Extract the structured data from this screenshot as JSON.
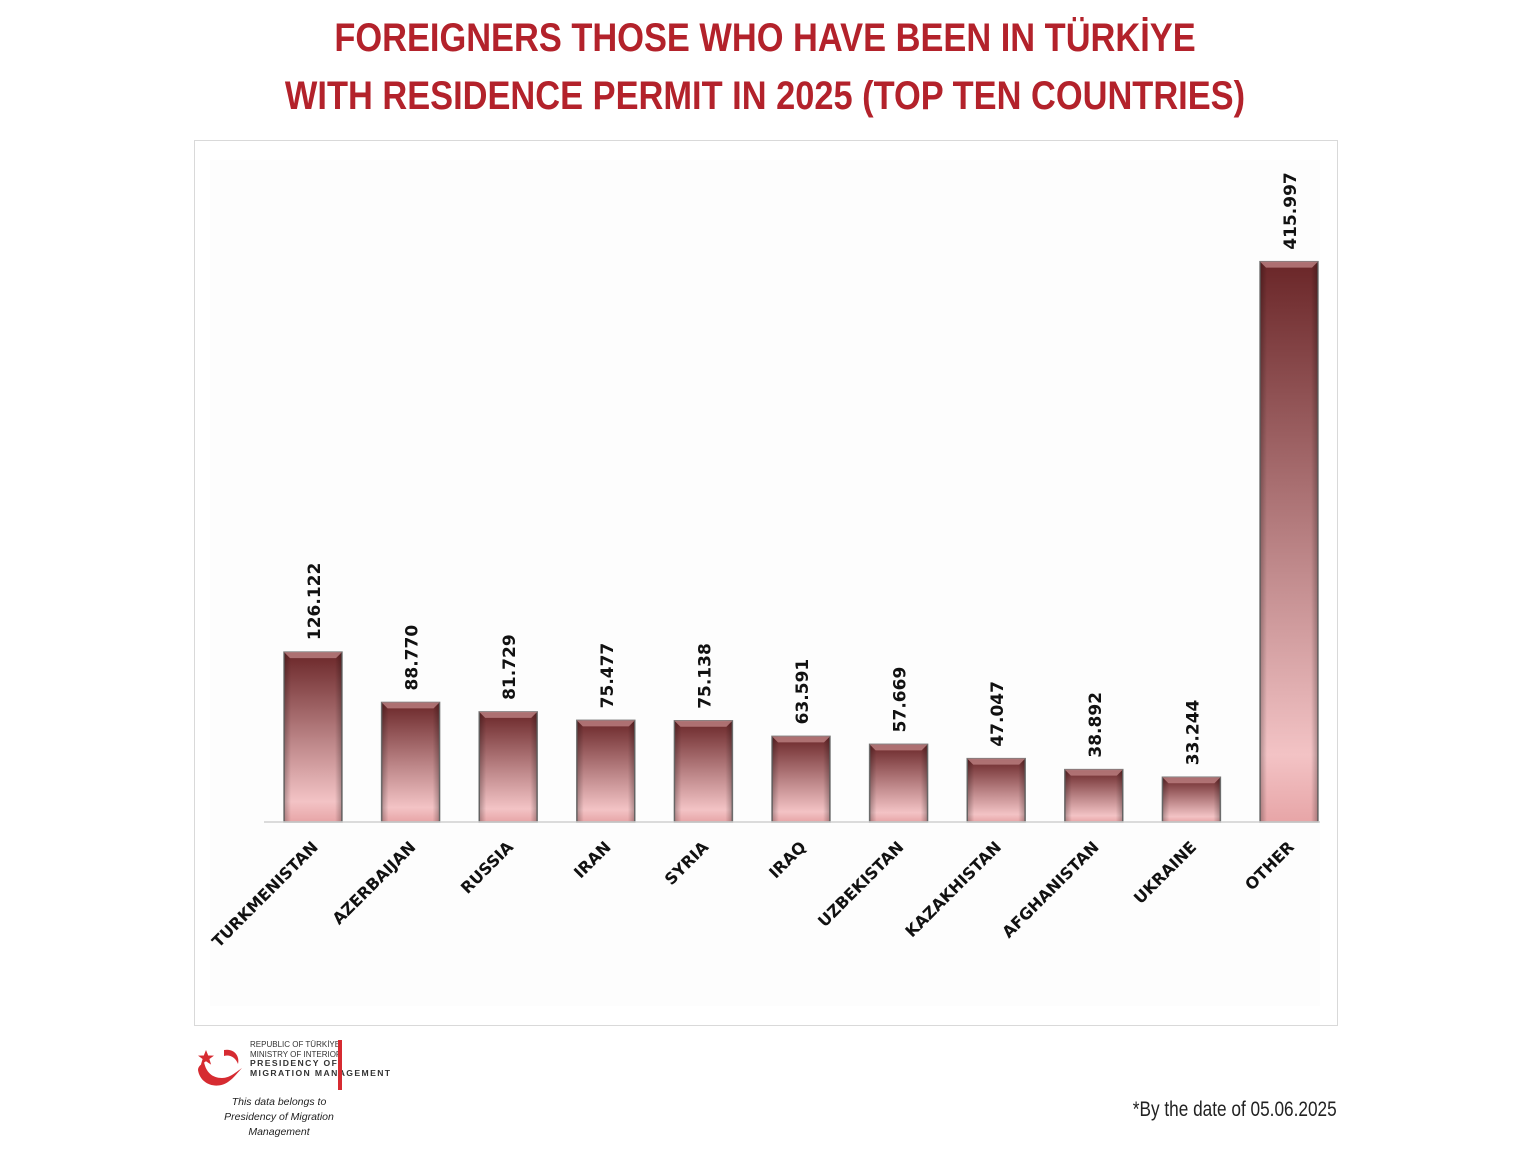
{
  "title_line1": "FOREIGNERS THOSE WHO HAVE BEEN IN TÜRKİYE",
  "title_line2": "WITH RESIDENCE PERMIT IN 2025 (TOP TEN COUNTRIES)",
  "chart_data": {
    "type": "bar",
    "title": "FOREIGNERS THOSE WHO HAVE BEEN IN TÜRKİYE WITH RESIDENCE PERMIT IN 2025 (TOP TEN COUNTRIES)",
    "categories": [
      "TURKMENISTAN",
      "AZERBAIJAN",
      "RUSSIA",
      "IRAN",
      "SYRIA",
      "IRAQ",
      "UZBEKISTAN",
      "KAZAKHISTAN",
      "AFGHANISTAN",
      "UKRAINE",
      "OTHER"
    ],
    "values": [
      126122,
      88770,
      81729,
      75477,
      75138,
      63591,
      57669,
      47047,
      38892,
      33244,
      415997
    ],
    "value_labels": [
      "126.122",
      "88.770",
      "81.729",
      "75.477",
      "75.138",
      "63.591",
      "57.669",
      "47.047",
      "38.892",
      "33.244",
      "415.997"
    ],
    "xlabel": "",
    "ylabel": "",
    "ylim": [
      0,
      490000
    ],
    "grid": false,
    "legend": "none",
    "bar_color_top": "#6e2a2c",
    "bar_color_bottom": "#f2bcbe"
  },
  "logo": {
    "line1": "REPUBLIC OF TÜRKİYE",
    "line2": "MINISTRY OF INTERIOR",
    "line3": "PRESIDENCY OF",
    "line4": "MIGRATION MANAGEMENT",
    "belongs_line1": "This data belongs to",
    "belongs_line2": "Presidency of Migration Management",
    "accent": "#d62b31"
  },
  "footnote": "*By the date of 05.06.2025"
}
